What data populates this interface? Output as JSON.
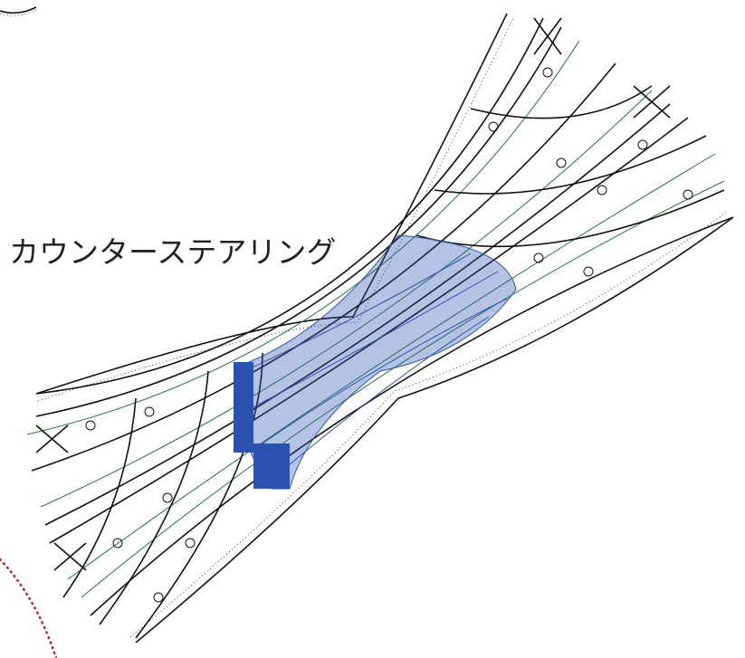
{
  "label": "カウンターステアリング"
}
